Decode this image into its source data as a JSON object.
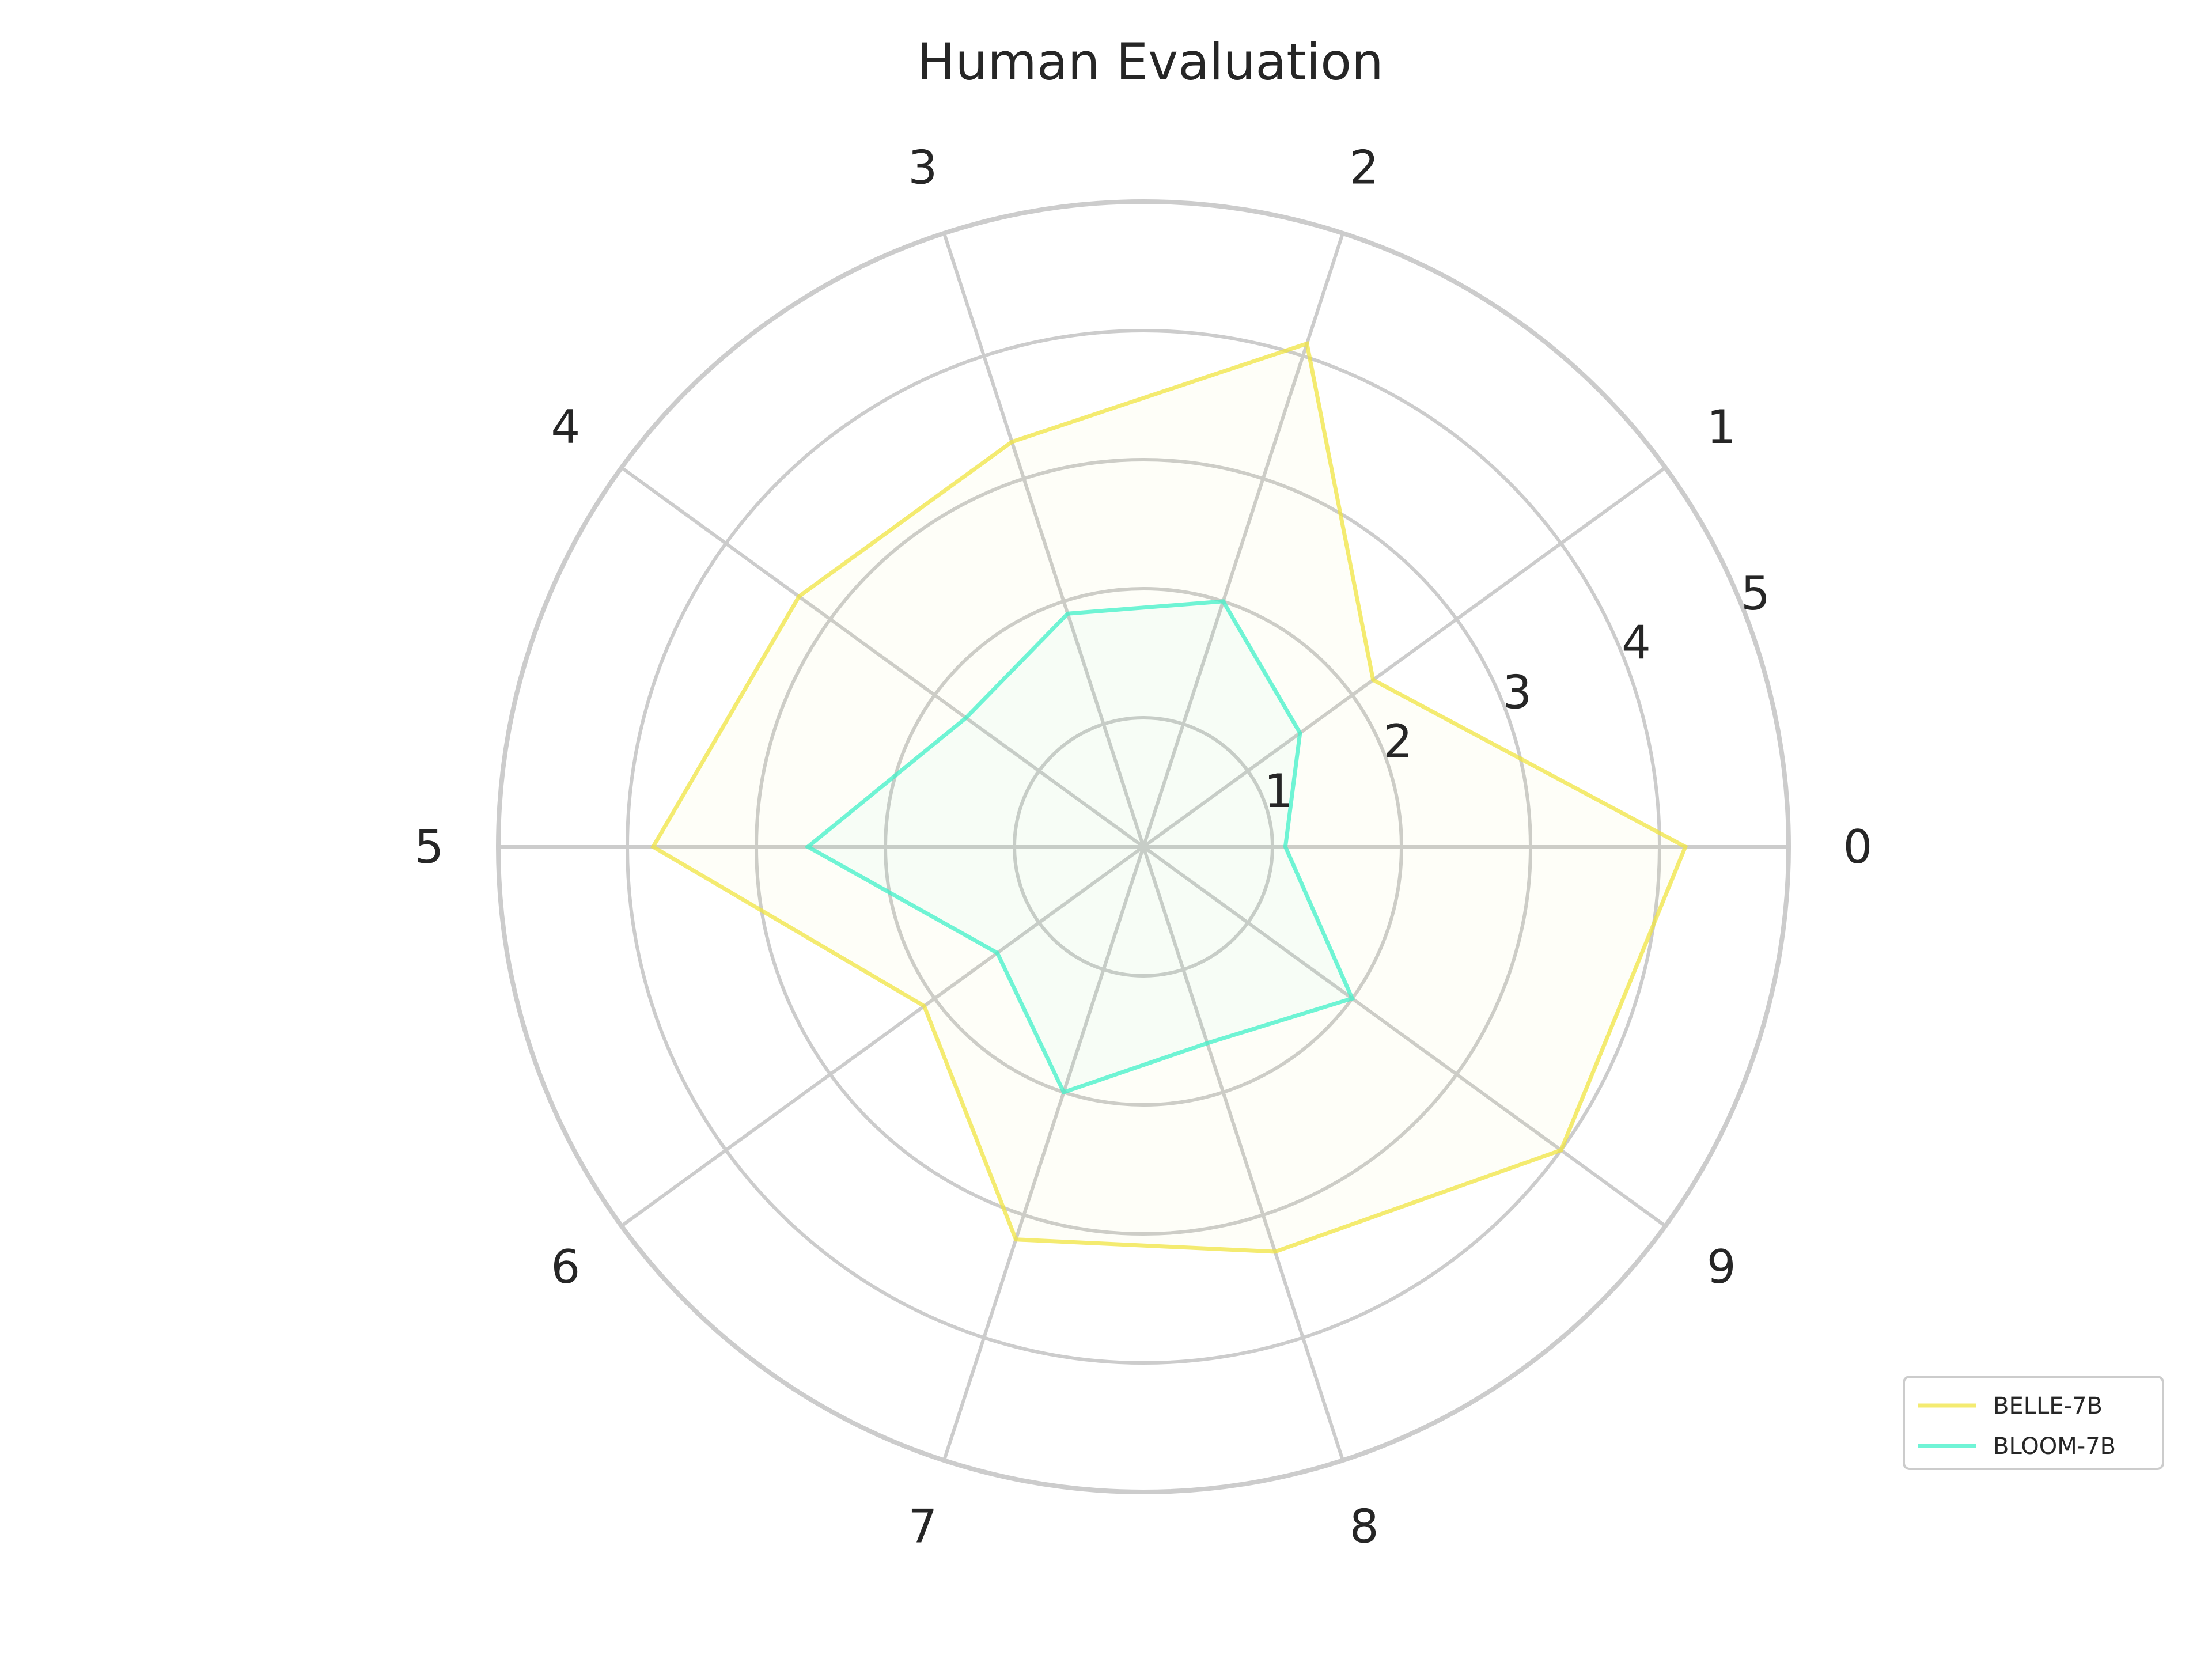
{
  "chart_data": {
    "type": "radar",
    "title": "Human Evaluation",
    "categories": [
      "0",
      "1",
      "2",
      "3",
      "4",
      "5",
      "6",
      "7",
      "8",
      "9"
    ],
    "radial_ticks": [
      "1",
      "2",
      "3",
      "4",
      "5"
    ],
    "rlim": [
      0,
      5
    ],
    "series": [
      {
        "name": "BELLE-7B",
        "values": [
          4.2,
          2.2,
          4.1,
          3.3,
          3.3,
          3.8,
          2.1,
          3.2,
          3.3,
          4.0
        ],
        "color": "#f0e442"
      },
      {
        "name": "BLOOM-7B",
        "values": [
          1.1,
          1.5,
          2.0,
          1.9,
          1.7,
          2.6,
          1.4,
          2.0,
          1.6,
          2.0
        ],
        "color": "#40f0c8"
      }
    ],
    "legend": {
      "placement": "lower-right"
    }
  }
}
